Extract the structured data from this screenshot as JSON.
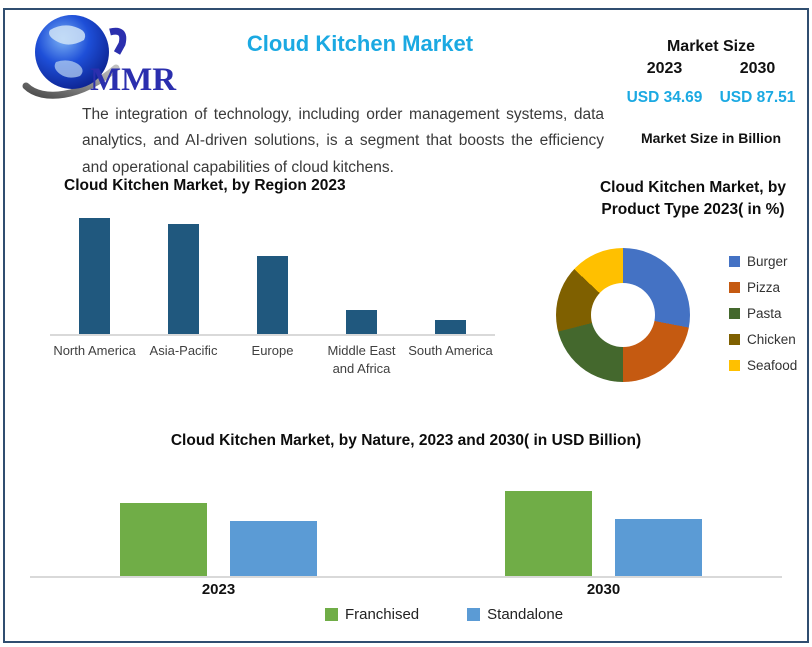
{
  "brand": {
    "logo_text": "MMR"
  },
  "header": {
    "title": "Cloud Kitchen Market",
    "description": "The integration of technology, including order management systems, data analytics, and AI-driven solutions, is a segment that boosts the efficiency and operational capabilities of cloud kitchens."
  },
  "market_size": {
    "title": "Market Size",
    "years": [
      "2023",
      "2030"
    ],
    "values": [
      "USD 34.69",
      "USD 87.51"
    ],
    "note": "Market Size in Billion",
    "accent_color": "#1BA9E2"
  },
  "chart_data": [
    {
      "id": "region_bar",
      "type": "bar",
      "title": "Cloud Kitchen Market, by Region 2023",
      "categories": [
        "North America",
        "Asia-Pacific",
        "Europe",
        "Middle East and Africa",
        "South America"
      ],
      "values": [
        100,
        95,
        67,
        21,
        12
      ],
      "values_note": "relative index, North America = 100; chart shows no value axis or data labels",
      "bar_color": "#20587E",
      "axis_line_color": "#D9D9D9",
      "legend": "none",
      "grid": "off"
    },
    {
      "id": "product_type_donut",
      "type": "pie",
      "donut": true,
      "title": "Cloud Kitchen Market, by Product Type 2023( in %)",
      "slices": [
        {
          "label": "Burger",
          "value": 28,
          "color": "#4472C4"
        },
        {
          "label": "Pizza",
          "value": 22,
          "color": "#C55A11"
        },
        {
          "label": "Pasta",
          "value": 21,
          "color": "#44682D"
        },
        {
          "label": "Chicken",
          "value": 16,
          "color": "#7F6000"
        },
        {
          "label": "Seafood",
          "value": 13,
          "color": "#FFC000"
        }
      ],
      "values_note": "percent shares estimated from slice angles; no data labels shown",
      "legend_position": "right",
      "start_angle": "top, clockwise"
    },
    {
      "id": "nature_grouped_bar",
      "type": "bar",
      "title": "Cloud Kitchen Market, by Nature, 2023 and 2030( in USD Billion)",
      "categories": [
        "2023",
        "2030"
      ],
      "series": [
        {
          "name": "Franchised",
          "color": "#70AD47",
          "values": [
            86,
            100
          ]
        },
        {
          "name": "Standalone",
          "color": "#5B9BD5",
          "values": [
            65,
            67
          ]
        }
      ],
      "values_note": "relative index, Franchised 2030 = 100; chart shows no value axis or data labels",
      "axis_line_color": "#D9D9D9",
      "legend_position": "bottom",
      "grid": "off"
    }
  ]
}
